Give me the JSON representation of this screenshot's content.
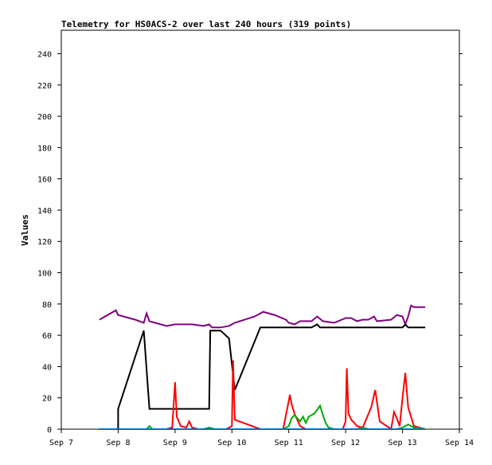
{
  "chart_data": {
    "type": "line",
    "title": "Telemetry for HS0ACS-2 over last 240 hours (319 points)",
    "xlabel": "",
    "ylabel": "Values",
    "xlim": [
      7.0,
      14.0
    ],
    "ylim": [
      0,
      255
    ],
    "x_ticks": [
      {
        "value": 7,
        "label": "Sep 7"
      },
      {
        "value": 8,
        "label": "Sep 8"
      },
      {
        "value": 9,
        "label": "Sep 9"
      },
      {
        "value": 10,
        "label": "Sep 10"
      },
      {
        "value": 11,
        "label": "Sep 11"
      },
      {
        "value": 12,
        "label": "Sep 12"
      },
      {
        "value": 13,
        "label": "Sep 13"
      },
      {
        "value": 14,
        "label": "Sep 14"
      }
    ],
    "y_ticks": [
      0,
      20,
      40,
      60,
      80,
      100,
      120,
      140,
      160,
      180,
      200,
      220,
      240
    ],
    "grid": false,
    "legend": "none",
    "series": [
      {
        "color": "#800080",
        "points": [
          [
            7.67,
            70
          ],
          [
            7.96,
            76
          ],
          [
            8.0,
            73
          ],
          [
            8.3,
            70
          ],
          [
            8.45,
            68
          ],
          [
            8.5,
            74
          ],
          [
            8.55,
            69
          ],
          [
            8.85,
            66
          ],
          [
            9.0,
            67
          ],
          [
            9.15,
            67
          ],
          [
            9.3,
            67
          ],
          [
            9.5,
            66
          ],
          [
            9.6,
            67
          ],
          [
            9.65,
            65
          ],
          [
            9.8,
            65
          ],
          [
            9.95,
            66
          ],
          [
            10.05,
            68
          ],
          [
            10.4,
            72
          ],
          [
            10.55,
            75
          ],
          [
            10.75,
            73
          ],
          [
            10.95,
            70
          ],
          [
            11.0,
            68
          ],
          [
            11.1,
            67
          ],
          [
            11.2,
            69
          ],
          [
            11.4,
            69
          ],
          [
            11.5,
            72
          ],
          [
            11.6,
            69
          ],
          [
            11.8,
            68
          ],
          [
            12.0,
            71
          ],
          [
            12.1,
            71
          ],
          [
            12.2,
            69
          ],
          [
            12.3,
            70
          ],
          [
            12.4,
            70
          ],
          [
            12.5,
            72
          ],
          [
            12.55,
            69
          ],
          [
            12.8,
            70
          ],
          [
            12.9,
            73
          ],
          [
            13.0,
            72
          ],
          [
            13.05,
            67
          ],
          [
            13.1,
            72
          ],
          [
            13.15,
            79
          ],
          [
            13.2,
            78
          ],
          [
            13.4,
            78
          ]
        ]
      },
      {
        "color": "#000000",
        "points": [
          [
            7.67,
            0
          ],
          [
            8.0,
            0
          ],
          [
            8.0,
            13
          ],
          [
            8.45,
            63
          ],
          [
            8.55,
            13
          ],
          [
            9.6,
            13
          ],
          [
            9.62,
            63
          ],
          [
            9.8,
            63
          ],
          [
            9.95,
            58
          ],
          [
            10.05,
            25
          ],
          [
            10.5,
            65
          ],
          [
            10.6,
            65
          ],
          [
            11.0,
            65
          ],
          [
            11.4,
            65
          ],
          [
            11.5,
            67
          ],
          [
            11.55,
            65
          ],
          [
            13.0,
            65
          ],
          [
            13.05,
            67
          ],
          [
            13.1,
            65
          ],
          [
            13.4,
            65
          ]
        ]
      },
      {
        "color": "#ff0000",
        "points": [
          [
            8.85,
            0
          ],
          [
            8.95,
            1
          ],
          [
            9.0,
            30
          ],
          [
            9.03,
            8
          ],
          [
            9.1,
            2
          ],
          [
            9.2,
            1
          ],
          [
            9.25,
            5
          ],
          [
            9.3,
            1
          ],
          [
            9.4,
            0
          ],
          [
            9.9,
            0
          ],
          [
            10.0,
            2
          ],
          [
            10.02,
            44
          ],
          [
            10.05,
            6
          ],
          [
            10.2,
            4
          ],
          [
            10.5,
            0
          ],
          [
            10.9,
            0
          ],
          [
            11.0,
            18
          ],
          [
            11.02,
            22
          ],
          [
            11.05,
            16
          ],
          [
            11.1,
            10
          ],
          [
            11.15,
            6
          ],
          [
            11.2,
            2
          ],
          [
            11.3,
            0
          ],
          [
            11.95,
            0
          ],
          [
            12.0,
            5
          ],
          [
            12.02,
            39
          ],
          [
            12.05,
            10
          ],
          [
            12.1,
            6
          ],
          [
            12.2,
            2
          ],
          [
            12.3,
            1
          ],
          [
            12.45,
            14
          ],
          [
            12.52,
            25
          ],
          [
            12.6,
            5
          ],
          [
            12.8,
            0
          ],
          [
            12.85,
            11
          ],
          [
            12.9,
            7
          ],
          [
            12.95,
            2
          ],
          [
            13.0,
            20
          ],
          [
            13.05,
            36
          ],
          [
            13.1,
            14
          ],
          [
            13.15,
            8
          ],
          [
            13.2,
            2
          ],
          [
            13.4,
            0
          ]
        ]
      },
      {
        "color": "#00aa00",
        "points": [
          [
            8.5,
            0
          ],
          [
            8.55,
            2
          ],
          [
            8.6,
            0
          ],
          [
            9.5,
            0
          ],
          [
            9.6,
            1
          ],
          [
            9.7,
            0
          ],
          [
            10.9,
            0
          ],
          [
            11.0,
            2
          ],
          [
            11.05,
            7
          ],
          [
            11.1,
            9
          ],
          [
            11.15,
            7
          ],
          [
            11.2,
            5
          ],
          [
            11.25,
            8
          ],
          [
            11.3,
            4
          ],
          [
            11.35,
            8
          ],
          [
            11.45,
            10
          ],
          [
            11.55,
            15
          ],
          [
            11.6,
            9
          ],
          [
            11.65,
            4
          ],
          [
            11.7,
            1
          ],
          [
            11.8,
            0
          ],
          [
            12.2,
            0
          ],
          [
            12.3,
            1
          ],
          [
            12.4,
            0
          ],
          [
            12.9,
            0
          ],
          [
            13.0,
            1
          ],
          [
            13.1,
            3
          ],
          [
            13.2,
            1
          ],
          [
            13.4,
            0
          ]
        ]
      },
      {
        "color": "#0070c0",
        "points": [
          [
            7.67,
            0
          ],
          [
            13.4,
            0
          ]
        ]
      }
    ]
  }
}
